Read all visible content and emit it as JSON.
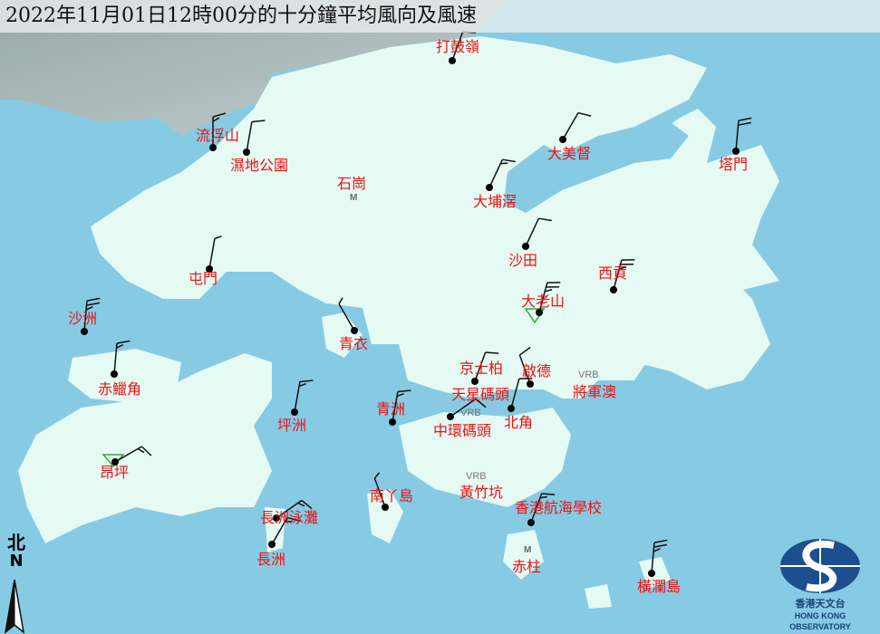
{
  "title": "2022年11月01日12時00分的十分鐘平均風向及風速",
  "colors": {
    "sea": "#86cbe3",
    "land": "#e6faf4",
    "label": "#ee1111",
    "barb": "#111111",
    "logo": "#1b3f7a"
  },
  "stations": [
    {
      "name": "打鼓嶺",
      "wind_dir_deg": 20,
      "wind_kt": 10
    },
    {
      "name": "流浮山",
      "wind_dir_deg": 0,
      "wind_kt": 15
    },
    {
      "name": "濕地公園",
      "wind_dir_deg": 10,
      "wind_kt": 10
    },
    {
      "name": "大美督",
      "wind_dir_deg": 30,
      "wind_kt": 10
    },
    {
      "name": "大埔滘",
      "wind_dir_deg": 25,
      "wind_kt": 15
    },
    {
      "name": "塔門",
      "wind_dir_deg": 5,
      "wind_kt": 20
    },
    {
      "name": "沙田",
      "wind_dir_deg": 25,
      "wind_kt": 10
    },
    {
      "name": "屯門",
      "wind_dir_deg": 10,
      "wind_kt": 5
    },
    {
      "name": "西貢",
      "wind_dir_deg": 15,
      "wind_kt": 25
    },
    {
      "name": "大老山",
      "wind_dir_deg": 15,
      "wind_kt": 25
    },
    {
      "name": "沙洲",
      "wind_dir_deg": 5,
      "wind_kt": 25
    },
    {
      "name": "青衣",
      "wind_dir_deg": 330,
      "wind_kt": 5
    },
    {
      "name": "赤鱲角",
      "wind_dir_deg": 5,
      "wind_kt": 15
    },
    {
      "name": "京士柏",
      "wind_dir_deg": 20,
      "wind_kt": 10
    },
    {
      "name": "啟德",
      "wind_dir_deg": 340,
      "wind_kt": 10
    },
    {
      "name": "北角",
      "wind_dir_deg": 15,
      "wind_kt": 10
    },
    {
      "name": "中環碼頭",
      "wind_dir_deg": 55,
      "wind_kt": 10
    },
    {
      "name": "青洲",
      "wind_dir_deg": 10,
      "wind_kt": 15
    },
    {
      "name": "坪洲",
      "wind_dir_deg": 10,
      "wind_kt": 15
    },
    {
      "name": "昂坪",
      "wind_dir_deg": 60,
      "wind_kt": 15
    },
    {
      "name": "南丫島",
      "wind_dir_deg": 340,
      "wind_kt": 5
    },
    {
      "name": "香港航海學校",
      "wind_dir_deg": 20,
      "wind_kt": 15
    },
    {
      "name": "長洲泳灘",
      "wind_dir_deg": 55,
      "wind_kt": 15
    },
    {
      "name": "長洲",
      "wind_dir_deg": 30,
      "wind_kt": 15
    },
    {
      "name": "橫瀾島",
      "wind_dir_deg": 5,
      "wind_kt": 25
    }
  ],
  "other_labels": {
    "shek_kong": "石崗",
    "star_ferry": "天星碼頭",
    "tko": "將軍澳",
    "wong_chuk_hang": "黃竹坑",
    "stanley": "赤柱"
  },
  "vrb": "VRB",
  "marker_m": "M",
  "north": {
    "cn": "北",
    "en": "N"
  },
  "logo": {
    "cn": "香港天文台",
    "en": "HONG KONG OBSERVATORY"
  }
}
